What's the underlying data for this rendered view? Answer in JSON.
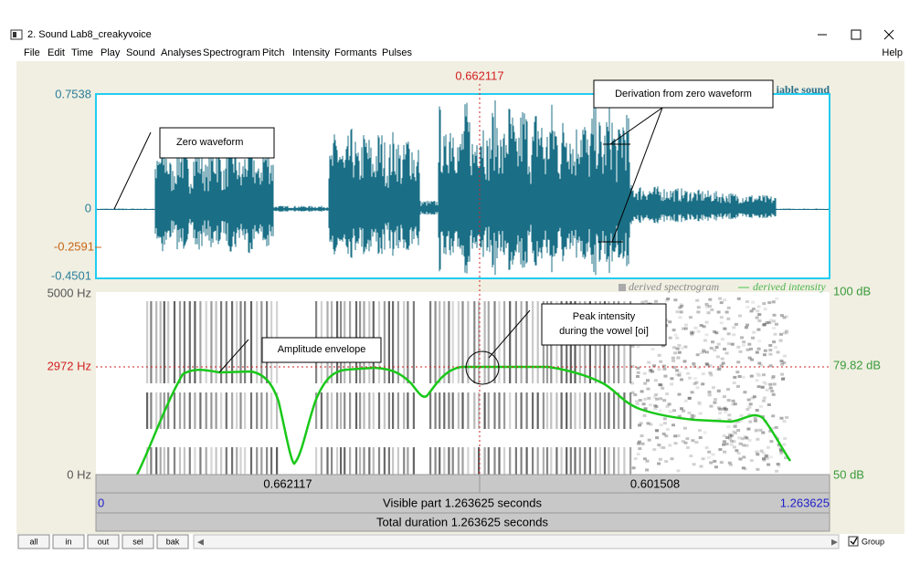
{
  "window": {
    "title": "2. Sound Lab8_creakyvoice",
    "menu": [
      "File",
      "Edit",
      "Time",
      "Play",
      "Sound",
      "Analyses",
      "Spectrogram",
      "Pitch",
      "Intensity",
      "Formants",
      "Pulses"
    ],
    "help": "Help"
  },
  "cursor": "0.662117",
  "waveform": {
    "label": "iable sound",
    "top": "0.7538",
    "zero": "0",
    "level": "-0.2591",
    "bottom": "-0.4501"
  },
  "spectrogram": {
    "legend_spectrogram": "derived spectrogram",
    "legend_intensity": "derived intensity",
    "freq_top": "5000 Hz",
    "freq_cursor": "2972 Hz",
    "freq_bottom": "0 Hz",
    "db_top": "100 dB",
    "db_cursor": "79.82 dB",
    "db_bottom": "50 dB"
  },
  "bars": {
    "left_part": "0.662117",
    "right_part": "0.601508",
    "visible_start": "0",
    "visible": "Visible part 1.263625 seconds",
    "visible_end": "1.263625",
    "total": "Total duration 1.263625 seconds"
  },
  "buttons": [
    "all",
    "in",
    "out",
    "sel",
    "bak"
  ],
  "group": "Group",
  "callouts": {
    "zero": "Zero waveform",
    "deviation": "Derivation from zero waveform",
    "envelope": "Amplitude envelope",
    "peak": [
      "Peak intensity",
      "during the vowel [oi]"
    ]
  }
}
